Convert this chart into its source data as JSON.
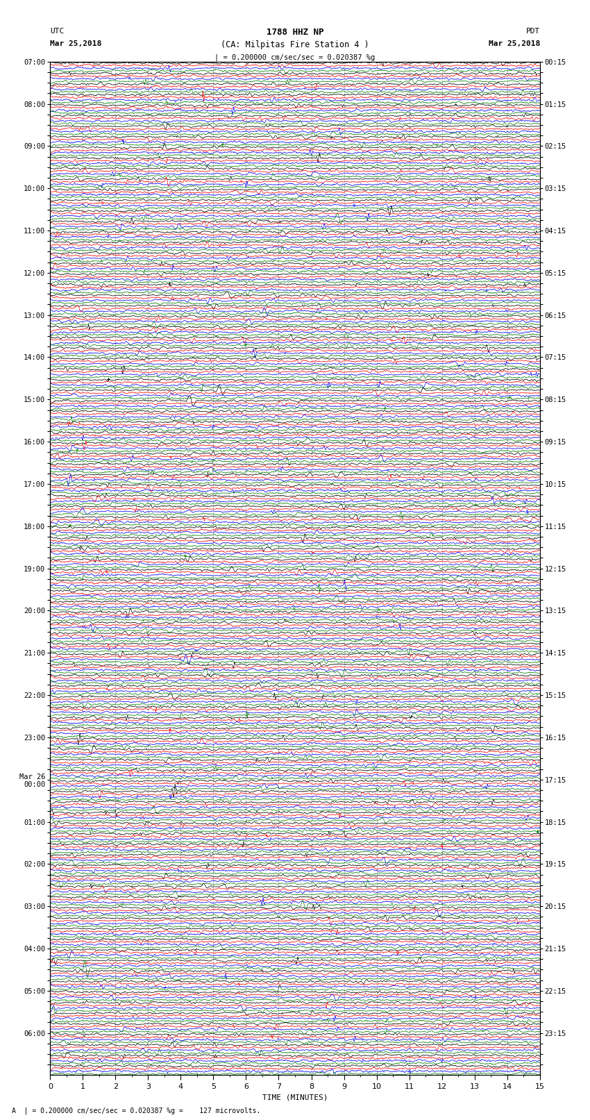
{
  "title_line1": "1788 HHZ NP",
  "title_line2": "(CA: Milpitas Fire Station 4 )",
  "scale_text": "| = 0.200000 cm/sec/sec = 0.020387 %g",
  "footer_text": "A  | = 0.200000 cm/sec/sec = 0.020387 %g =    127 microvolts.",
  "left_label_top": "UTC",
  "left_label_date": "Mar 25,2018",
  "right_label_top": "PDT",
  "right_label_date": "Mar 25,2018",
  "xlabel": "TIME (MINUTES)",
  "utc_times_labeled": [
    "07:00",
    "08:00",
    "09:00",
    "10:00",
    "11:00",
    "12:00",
    "13:00",
    "14:00",
    "15:00",
    "16:00",
    "17:00",
    "18:00",
    "19:00",
    "20:00",
    "21:00",
    "22:00",
    "23:00",
    "Mar 26\n00:00",
    "01:00",
    "02:00",
    "03:00",
    "04:00",
    "05:00",
    "06:00"
  ],
  "pdt_times_labeled": [
    "00:15",
    "01:15",
    "02:15",
    "03:15",
    "04:15",
    "05:15",
    "06:15",
    "07:15",
    "08:15",
    "09:15",
    "10:15",
    "11:15",
    "12:15",
    "13:15",
    "14:15",
    "15:15",
    "16:15",
    "17:15",
    "18:15",
    "19:15",
    "20:15",
    "21:15",
    "22:15",
    "23:15"
  ],
  "num_rows": 96,
  "traces_per_row": 4,
  "trace_colors": [
    "black",
    "red",
    "blue",
    "green"
  ],
  "xlim": [
    0,
    15
  ],
  "bg_color": "white",
  "trace_linewidth": 0.5,
  "grid_color": "#888888",
  "grid_linewidth": 0.4
}
